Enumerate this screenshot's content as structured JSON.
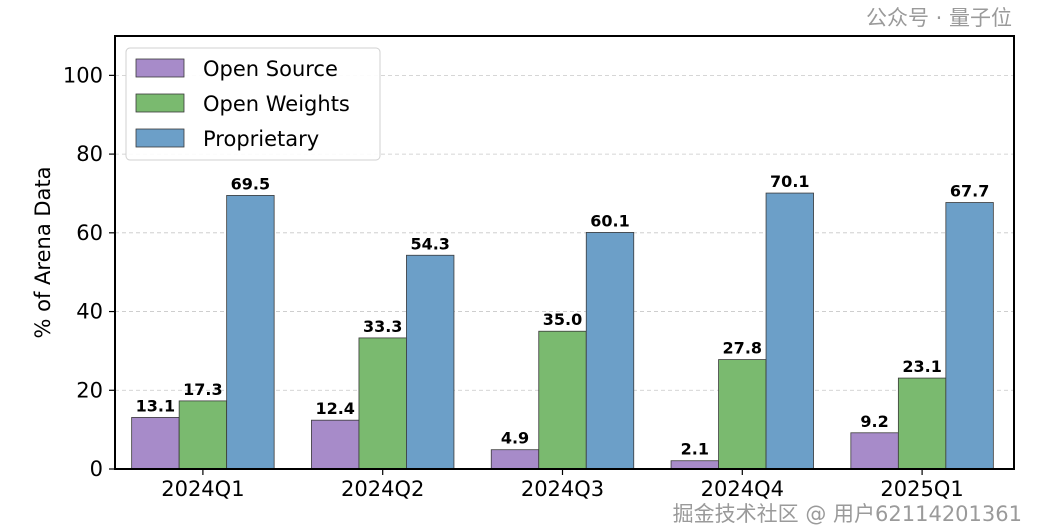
{
  "chart_data": {
    "type": "bar",
    "title": "",
    "xlabel": "",
    "ylabel": "% of Arena Data",
    "ylim": [
      0,
      110
    ],
    "yticks": [
      0,
      20,
      40,
      60,
      80,
      100
    ],
    "grid": "horizontal dashed",
    "legend_placement": "top-left",
    "categories": [
      "2024Q1",
      "2024Q2",
      "2024Q3",
      "2024Q4",
      "2025Q1"
    ],
    "series": [
      {
        "name": "Open Source",
        "color": "#a78bc9",
        "values": [
          13.1,
          12.4,
          4.9,
          2.1,
          9.2
        ]
      },
      {
        "name": "Open Weights",
        "color": "#7aba6f",
        "values": [
          17.3,
          33.3,
          35.0,
          27.8,
          23.1
        ]
      },
      {
        "name": "Proprietary",
        "color": "#6c9fc8",
        "values": [
          69.5,
          54.3,
          60.1,
          70.1,
          67.7
        ]
      }
    ]
  },
  "watermark": {
    "primary": "掘金技术社区 @ 用户62114201361",
    "secondary": "公众号 · 量子位"
  }
}
